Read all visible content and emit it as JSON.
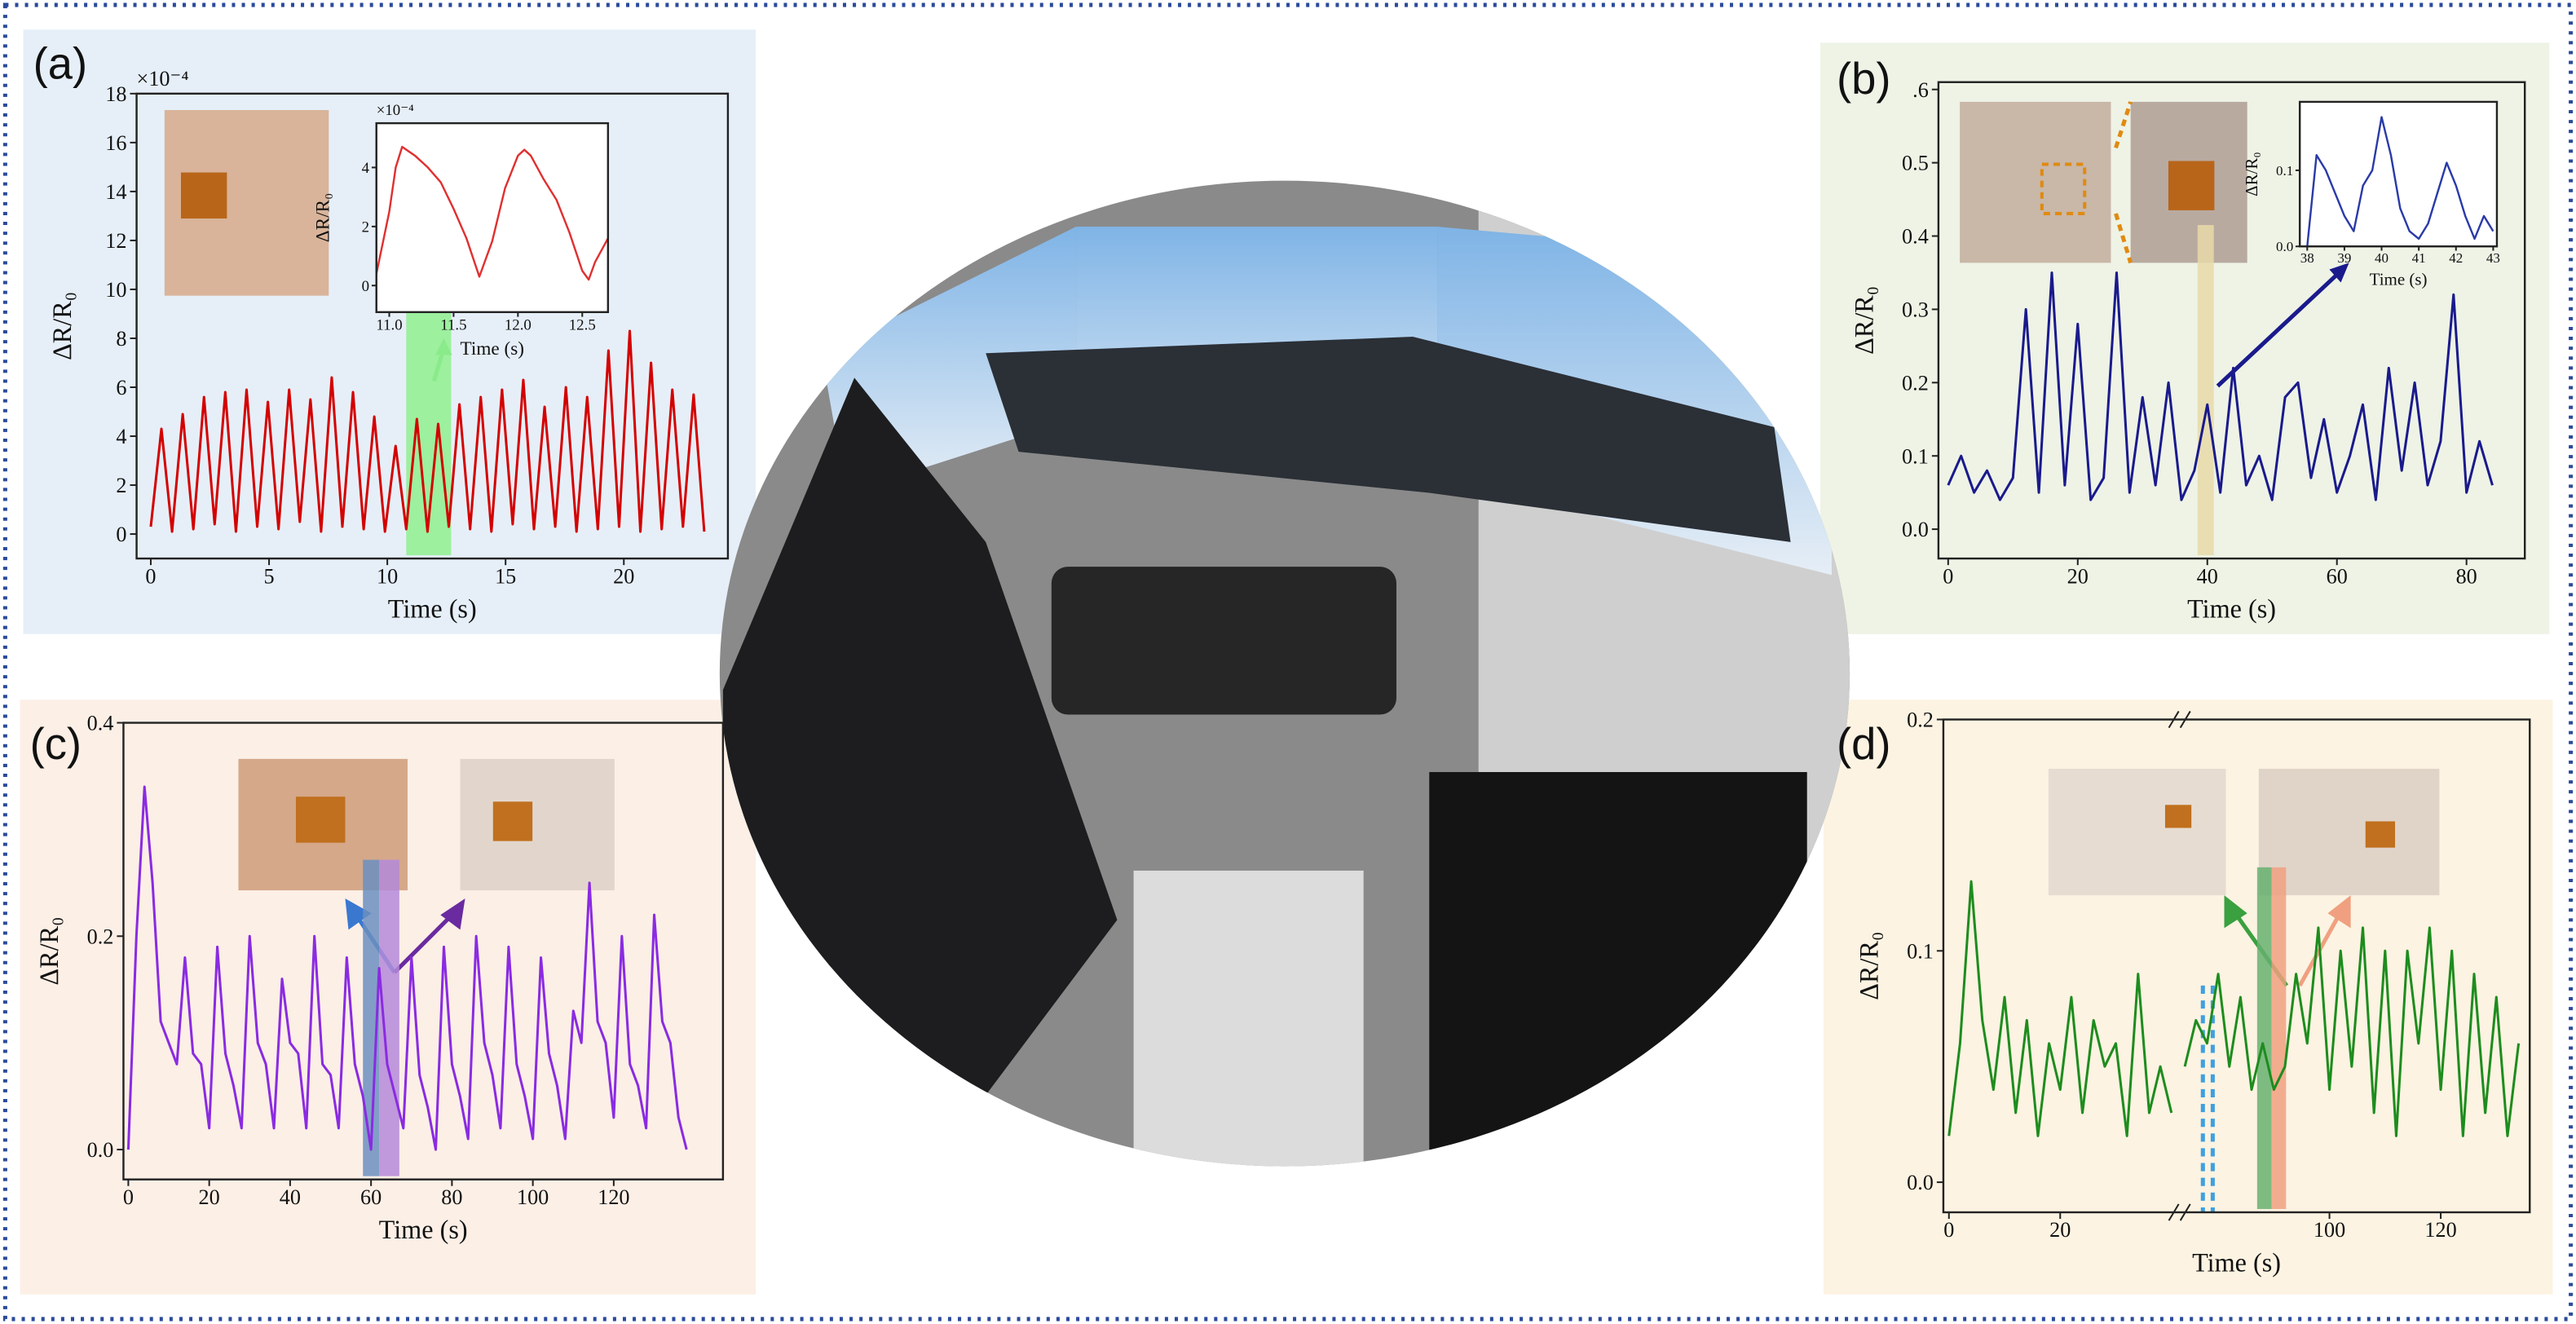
{
  "chart_data": [
    {
      "type": "line",
      "label": "(a)",
      "ylabel": "ΔR/R₀",
      "xlabel": "Time (s)",
      "multiplier": "×10⁻⁴",
      "color": "#d40000",
      "xlim": [
        -0.6,
        24.4
      ],
      "ylim": [
        -1,
        18
      ],
      "xticks": [
        0,
        5,
        10,
        15,
        20
      ],
      "yticks": [
        0,
        2,
        4,
        6,
        8,
        10,
        12,
        14,
        16,
        18
      ],
      "highlights": [
        {
          "x": [
            10.8,
            12.7
          ],
          "color": "#8ef08e"
        }
      ],
      "x": [
        0,
        0.45,
        0.9,
        1.35,
        1.8,
        2.25,
        2.7,
        3.15,
        3.6,
        4.05,
        4.5,
        4.95,
        5.4,
        5.85,
        6.3,
        6.75,
        7.2,
        7.65,
        8.1,
        8.55,
        9,
        9.45,
        9.9,
        10.35,
        10.8,
        11.25,
        11.7,
        12.15,
        12.6,
        13.05,
        13.5,
        13.95,
        14.4,
        14.85,
        15.3,
        15.75,
        16.2,
        16.65,
        17.1,
        17.55,
        18,
        18.45,
        18.9,
        19.35,
        19.8,
        20.25,
        20.7,
        21.15,
        21.6,
        22.05,
        22.5,
        22.95,
        23.4
      ],
      "values": [
        0.3,
        4.3,
        0.1,
        4.9,
        0.2,
        5.6,
        0.4,
        5.8,
        0.1,
        5.9,
        0.3,
        5.4,
        0.2,
        5.9,
        0.5,
        5.5,
        0.1,
        6.4,
        0.3,
        5.8,
        0.2,
        4.8,
        0.1,
        3.6,
        0.2,
        4.7,
        0.1,
        4.5,
        0.3,
        5.3,
        0.2,
        5.6,
        0.1,
        5.9,
        0.4,
        6.3,
        0.2,
        5.2,
        0.3,
        6.0,
        0.1,
        5.6,
        0.2,
        7.5,
        0.3,
        8.3,
        0.1,
        7.0,
        0.2,
        5.9,
        0.3,
        5.7,
        0.1
      ]
    },
    {
      "type": "line",
      "ylabel": "ΔR/R₀",
      "xlabel": "Time (s)",
      "multiplier": "×10⁻⁴",
      "color": "#e03030",
      "xlim": [
        10.9,
        12.7
      ],
      "ylim": [
        -0.9,
        5.5
      ],
      "xticks": [
        {
          "value": 11,
          "label": "11.0"
        },
        11.5,
        {
          "value": 12,
          "label": "12.0"
        },
        12.5
      ],
      "yticks": [
        0,
        2,
        4
      ],
      "x": [
        10.9,
        11.0,
        11.05,
        11.1,
        11.2,
        11.3,
        11.4,
        11.5,
        11.6,
        11.7,
        11.8,
        11.9,
        12.0,
        12.05,
        12.1,
        12.2,
        12.3,
        12.4,
        12.5,
        12.55,
        12.6,
        12.7
      ],
      "values": [
        0.4,
        2.5,
        4.0,
        4.7,
        4.4,
        4.0,
        3.5,
        2.6,
        1.6,
        0.3,
        1.5,
        3.3,
        4.4,
        4.6,
        4.4,
        3.6,
        2.9,
        1.8,
        0.5,
        0.2,
        0.8,
        1.6
      ]
    },
    {
      "type": "line",
      "label": "(b)",
      "ylabel": "ΔR/R₀",
      "xlabel": "Time (s)",
      "color": "#1a1a8c",
      "xlim": [
        -1.5,
        89
      ],
      "ylim": [
        -0.04,
        0.61
      ],
      "xticks": [
        0,
        20,
        40,
        60,
        80
      ],
      "yticks": [
        {
          "value": 0,
          "label": "0.0"
        },
        0.1,
        0.2,
        0.3,
        0.4,
        0.5,
        {
          "value": 0.6,
          "label": ".6"
        }
      ],
      "highlights": [
        {
          "x": [
            38.5,
            41
          ],
          "color": "#e8d9a8"
        }
      ],
      "x": [
        0,
        2,
        4,
        6,
        8,
        10,
        12,
        14,
        16,
        18,
        20,
        22,
        24,
        26,
        28,
        30,
        32,
        34,
        36,
        38,
        40,
        42,
        44,
        46,
        48,
        50,
        52,
        54,
        56,
        58,
        60,
        62,
        64,
        66,
        68,
        70,
        72,
        74,
        76,
        78,
        80,
        82,
        84
      ],
      "values": [
        0.06,
        0.1,
        0.05,
        0.08,
        0.04,
        0.07,
        0.3,
        0.05,
        0.35,
        0.06,
        0.28,
        0.04,
        0.07,
        0.35,
        0.05,
        0.18,
        0.06,
        0.2,
        0.04,
        0.08,
        0.17,
        0.05,
        0.22,
        0.06,
        0.1,
        0.04,
        0.18,
        0.2,
        0.07,
        0.15,
        0.05,
        0.1,
        0.17,
        0.04,
        0.22,
        0.08,
        0.2,
        0.06,
        0.12,
        0.32,
        0.05,
        0.12,
        0.06
      ]
    },
    {
      "type": "line",
      "ylabel": "ΔR/R₀",
      "xlabel": "Time (s)",
      "color": "#2a3aa8",
      "xlim": [
        37.8,
        43.1
      ],
      "ylim": [
        0,
        0.19
      ],
      "xticks": [
        38,
        39,
        40,
        41,
        42,
        43
      ],
      "yticks": [
        {
          "value": 0,
          "label": "0.0"
        },
        0.1
      ],
      "x": [
        38,
        38.25,
        38.5,
        38.75,
        39,
        39.25,
        39.5,
        39.75,
        40,
        40.25,
        40.5,
        40.75,
        41,
        41.25,
        41.5,
        41.75,
        42,
        42.25,
        42.5,
        42.75,
        43
      ],
      "values": [
        0.0,
        0.12,
        0.1,
        0.07,
        0.04,
        0.02,
        0.08,
        0.1,
        0.17,
        0.12,
        0.05,
        0.02,
        0.01,
        0.03,
        0.07,
        0.11,
        0.08,
        0.04,
        0.01,
        0.04,
        0.02
      ]
    },
    {
      "type": "line",
      "label": "(c)",
      "ylabel": "ΔR/R₀",
      "xlabel": "Time (s)",
      "color": "#8a2be2",
      "xlim": [
        -1.2,
        147
      ],
      "ylim": [
        -0.028,
        0.4
      ],
      "xticks": [
        0,
        20,
        40,
        60,
        80,
        100,
        120
      ],
      "yticks": [
        {
          "value": 0,
          "label": "0.0"
        },
        0.2,
        0.4
      ],
      "highlights": [
        {
          "x": [
            58,
            62
          ],
          "color": "#6c8fc0"
        },
        {
          "x": [
            62,
            67
          ],
          "color": "#b48ad8"
        }
      ],
      "x": [
        0,
        2,
        4,
        6,
        8,
        10,
        12,
        14,
        16,
        18,
        20,
        22,
        24,
        26,
        28,
        30,
        32,
        34,
        36,
        38,
        40,
        42,
        44,
        46,
        48,
        50,
        52,
        54,
        56,
        58,
        60,
        62,
        64,
        66,
        68,
        70,
        72,
        74,
        76,
        78,
        80,
        82,
        84,
        86,
        88,
        90,
        92,
        94,
        96,
        98,
        100,
        102,
        104,
        106,
        108,
        110,
        112,
        114,
        116,
        118,
        120,
        122,
        124,
        126,
        128,
        130,
        132,
        134,
        136,
        138
      ],
      "values": [
        0.0,
        0.2,
        0.34,
        0.25,
        0.12,
        0.1,
        0.08,
        0.18,
        0.09,
        0.08,
        0.02,
        0.19,
        0.09,
        0.06,
        0.02,
        0.2,
        0.1,
        0.08,
        0.02,
        0.16,
        0.1,
        0.09,
        0.02,
        0.2,
        0.08,
        0.07,
        0.02,
        0.18,
        0.08,
        0.05,
        0.0,
        0.17,
        0.08,
        0.05,
        0.02,
        0.18,
        0.07,
        0.04,
        0.0,
        0.19,
        0.08,
        0.05,
        0.01,
        0.2,
        0.1,
        0.07,
        0.02,
        0.19,
        0.08,
        0.05,
        0.01,
        0.18,
        0.09,
        0.06,
        0.01,
        0.13,
        0.1,
        0.25,
        0.12,
        0.1,
        0.03,
        0.2,
        0.08,
        0.06,
        0.02,
        0.22,
        0.12,
        0.1,
        0.03,
        0.0
      ]
    },
    {
      "type": "line",
      "label": "(d)",
      "ylabel": "ΔR/R₀",
      "xlabel": "Time (s)",
      "color": "#1e8c1e",
      "xlim": [
        -1,
        136
      ],
      "xbreak": [
        41.6,
        73.2
      ],
      "ylim": [
        -0.013,
        0.2
      ],
      "xticks": [
        0,
        20,
        100,
        120
      ],
      "yticks": [
        {
          "value": 0,
          "label": "0.0"
        },
        0.1,
        0.2
      ],
      "highlights": [
        {
          "x": [
            87,
            89.6
          ],
          "color": "#66b070"
        },
        {
          "x": [
            89.6,
            92.2
          ],
          "color": "#f0a080"
        }
      ],
      "x": [
        0,
        2,
        4,
        6,
        8,
        10,
        12,
        14,
        16,
        18,
        20,
        22,
        24,
        26,
        28,
        30,
        32,
        34,
        36,
        38,
        40,
        57,
        74,
        76,
        78,
        80,
        82,
        84,
        86,
        88,
        90,
        92,
        94,
        96,
        98,
        100,
        102,
        104,
        106,
        108,
        110,
        112,
        114,
        116,
        118,
        120,
        122,
        124,
        126,
        128,
        130,
        132,
        134
      ],
      "values": [
        0.02,
        0.06,
        0.13,
        0.07,
        0.04,
        0.08,
        0.03,
        0.07,
        0.02,
        0.06,
        0.04,
        0.08,
        0.03,
        0.07,
        0.05,
        0.06,
        0.02,
        0.09,
        0.03,
        0.05,
        0.03,
        null,
        0.05,
        0.07,
        0.06,
        0.09,
        0.05,
        0.08,
        0.04,
        0.06,
        0.04,
        0.05,
        0.09,
        0.06,
        0.11,
        0.04,
        0.1,
        0.05,
        0.11,
        0.03,
        0.1,
        0.02,
        0.1,
        0.06,
        0.11,
        0.04,
        0.1,
        0.02,
        0.09,
        0.03,
        0.08,
        0.02,
        0.06
      ]
    }
  ]
}
